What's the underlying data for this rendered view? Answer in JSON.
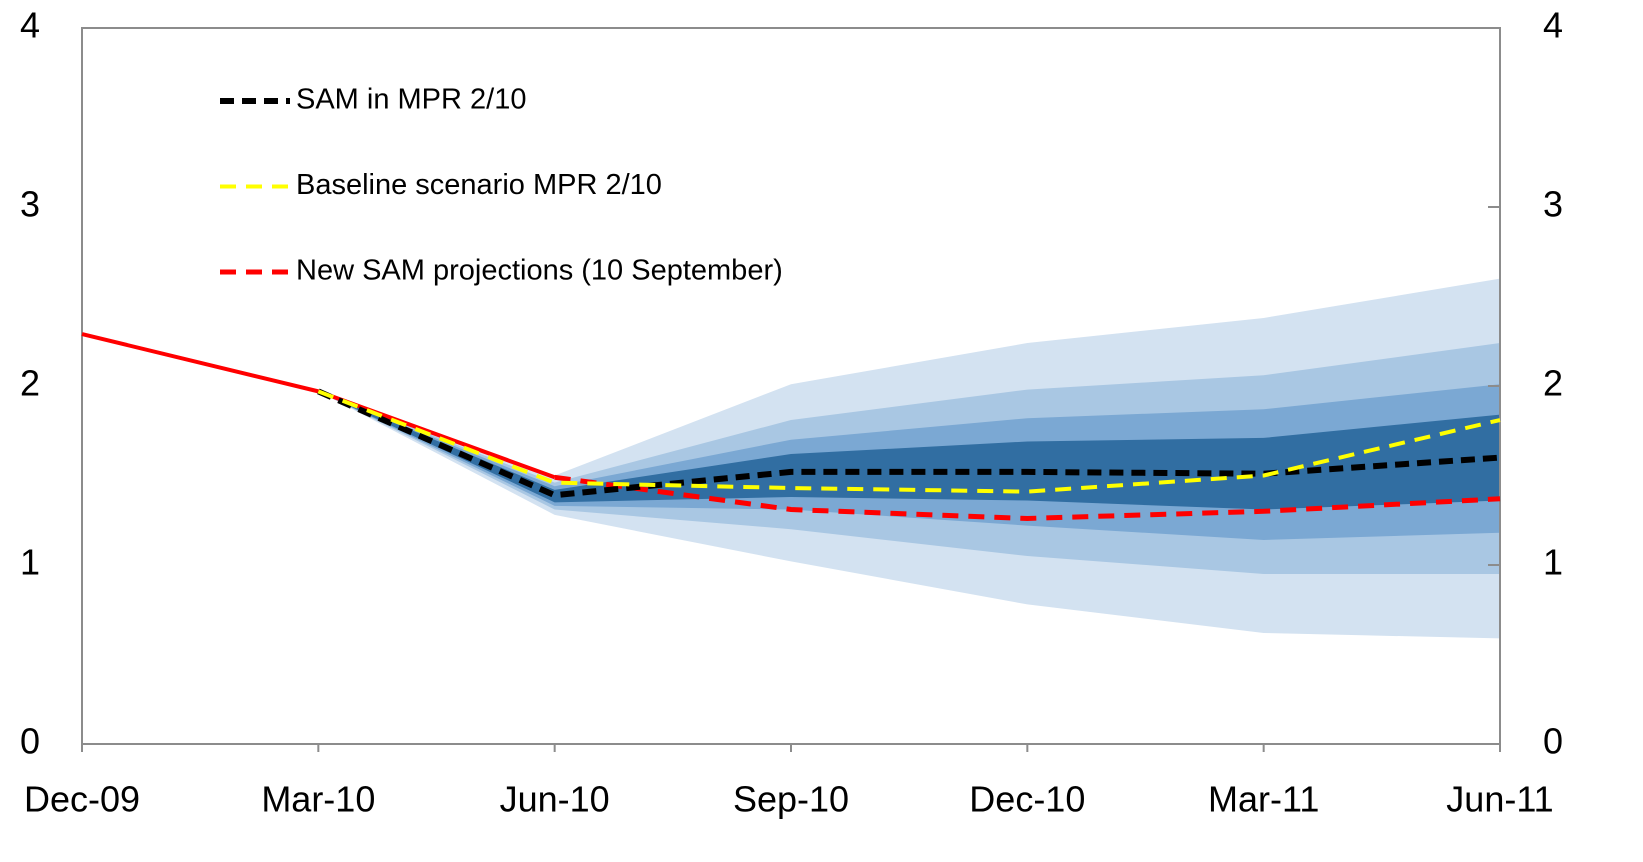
{
  "chart_data": {
    "type": "line",
    "categories": [
      "Dec-09",
      "Mar-10",
      "Jun-10",
      "Sep-10",
      "Dec-10",
      "Mar-11",
      "Jun-11"
    ],
    "series": [
      {
        "name": "SAM in MPR 2/10",
        "color": "#000000",
        "values": [
          null,
          1.97,
          1.39,
          1.52,
          1.52,
          1.51,
          1.6
        ]
      },
      {
        "name": "Baseline scenario MPR 2/10",
        "color": "#ffff00",
        "values": [
          null,
          1.97,
          1.46,
          1.43,
          1.41,
          1.5,
          1.81
        ]
      },
      {
        "name": "New SAM projections (10 September)",
        "color": "#ff0000",
        "values": [
          2.29,
          1.97,
          1.49,
          1.31,
          1.26,
          1.3,
          1.37
        ],
        "solid_until": 2
      }
    ],
    "bands": [
      {
        "color": "#d3e2f1",
        "upper": [
          null,
          1.97,
          1.5,
          2.01,
          2.24,
          2.38,
          2.6
        ],
        "lower": [
          null,
          1.97,
          1.28,
          1.02,
          0.78,
          0.62,
          0.59
        ]
      },
      {
        "color": "#a9c7e3",
        "upper": [
          null,
          1.97,
          1.46,
          1.81,
          1.98,
          2.06,
          2.24
        ],
        "lower": [
          null,
          1.97,
          1.31,
          1.2,
          1.05,
          0.95,
          0.95
        ]
      },
      {
        "color": "#7ba8d3",
        "upper": [
          null,
          1.97,
          1.44,
          1.7,
          1.82,
          1.87,
          2.01
        ],
        "lower": [
          null,
          1.97,
          1.33,
          1.31,
          1.22,
          1.14,
          1.18
        ]
      },
      {
        "color": "#316ea2",
        "upper": [
          null,
          1.97,
          1.42,
          1.62,
          1.69,
          1.71,
          1.84
        ],
        "lower": [
          null,
          1.97,
          1.35,
          1.38,
          1.36,
          1.31,
          1.36
        ]
      }
    ],
    "ylim": [
      0,
      4
    ],
    "yticks": [
      0,
      1,
      2,
      3,
      4
    ],
    "y2lim": [
      0,
      4
    ],
    "y2ticks": [
      0,
      1,
      2,
      3,
      4
    ],
    "legend": "upper left"
  }
}
